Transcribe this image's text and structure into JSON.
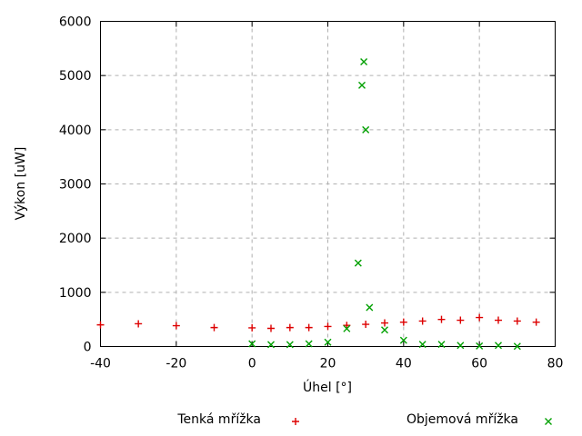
{
  "chart_data": {
    "type": "scatter",
    "title": "",
    "xlabel": "Úhel [°]",
    "ylabel": "Výkon [uW]",
    "xlim": [
      -40,
      80
    ],
    "ylim": [
      0,
      6000
    ],
    "xticks": [
      -40,
      -20,
      0,
      20,
      40,
      60,
      80
    ],
    "yticks": [
      0,
      1000,
      2000,
      3000,
      4000,
      5000,
      6000
    ],
    "grid": true,
    "legend_position": "bottom-outside",
    "series": [
      {
        "name": "Tenká mřížka",
        "marker": "plus",
        "color": "#dd0000",
        "points": [
          [
            -40,
            400
          ],
          [
            -30,
            420
          ],
          [
            -20,
            385
          ],
          [
            -10,
            350
          ],
          [
            0,
            345
          ],
          [
            5,
            335
          ],
          [
            10,
            350
          ],
          [
            15,
            350
          ],
          [
            20,
            370
          ],
          [
            25,
            390
          ],
          [
            30,
            410
          ],
          [
            35,
            435
          ],
          [
            40,
            450
          ],
          [
            45,
            470
          ],
          [
            50,
            500
          ],
          [
            55,
            485
          ],
          [
            60,
            535
          ],
          [
            65,
            485
          ],
          [
            70,
            470
          ],
          [
            75,
            450
          ]
        ]
      },
      {
        "name": "Objemová mřížka",
        "marker": "cross",
        "color": "#00a000",
        "points": [
          [
            0,
            50
          ],
          [
            5,
            35
          ],
          [
            10,
            35
          ],
          [
            15,
            50
          ],
          [
            20,
            80
          ],
          [
            25,
            330
          ],
          [
            28,
            1540
          ],
          [
            29,
            4820
          ],
          [
            29.5,
            5255
          ],
          [
            30,
            4000
          ],
          [
            31,
            720
          ],
          [
            35,
            305
          ],
          [
            40,
            115
          ],
          [
            45,
            40
          ],
          [
            50,
            40
          ],
          [
            55,
            20
          ],
          [
            60,
            10
          ],
          [
            65,
            20
          ],
          [
            70,
            5
          ]
        ]
      }
    ]
  },
  "colors": {
    "background": "#ffffff",
    "axis": "#000000",
    "grid": "#b0b0b0",
    "text": "#000000"
  }
}
